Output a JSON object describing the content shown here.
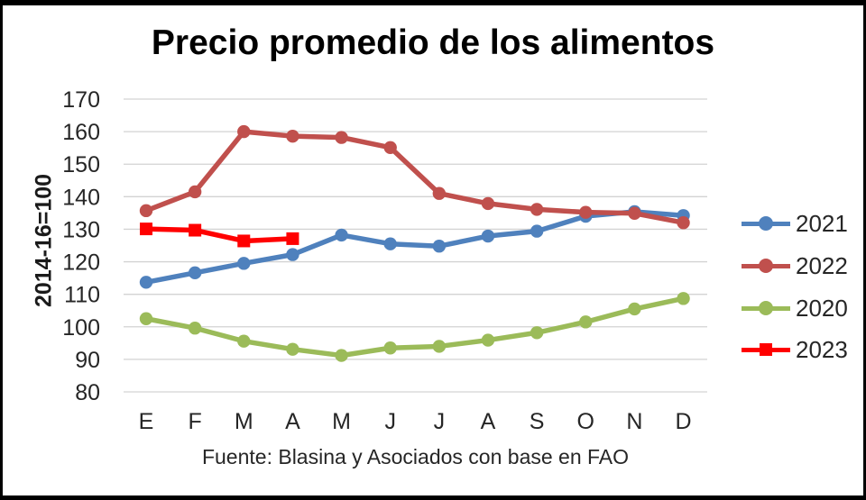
{
  "title": "Precio promedio de los alimentos",
  "y_axis_title": "2014-16=100",
  "source": "Fuente: Blasina y Asociados con base en FAO",
  "chart_data": {
    "type": "line",
    "title": "Precio promedio de los alimentos",
    "ylabel": "2014-16=100",
    "categories": [
      "E",
      "F",
      "M",
      "A",
      "M",
      "J",
      "J",
      "A",
      "S",
      "O",
      "N",
      "D"
    ],
    "y_ticks": [
      170,
      160,
      150,
      140,
      130,
      120,
      110,
      100,
      90,
      80
    ],
    "ylim": [
      80,
      170
    ],
    "grid": true,
    "legend_position": "right",
    "gridline_color": "#d3d3d3",
    "series": [
      {
        "name": "2021",
        "color": "#4F81BD",
        "marker": "circle",
        "values": [
          113.7,
          116.6,
          119.5,
          122.2,
          128.2,
          125.5,
          124.8,
          127.9,
          129.4,
          134.0,
          135.4,
          134.2
        ]
      },
      {
        "name": "2022",
        "color": "#C0504D",
        "marker": "circle",
        "values": [
          135.7,
          141.5,
          160,
          158.6,
          158.2,
          155.1,
          141,
          137.9,
          136.1,
          135.2,
          134.9,
          132.0
        ]
      },
      {
        "name": "2020",
        "color": "#9BBB59",
        "marker": "circle",
        "values": [
          102.5,
          99.6,
          95.6,
          93.1,
          91.2,
          93.5,
          94,
          95.9,
          98.2,
          101.5,
          105.5,
          108.7
        ]
      },
      {
        "name": "2023",
        "color": "#FF0000",
        "marker": "square",
        "values": [
          130.1,
          129.7,
          126.4,
          127.1
        ]
      }
    ]
  }
}
